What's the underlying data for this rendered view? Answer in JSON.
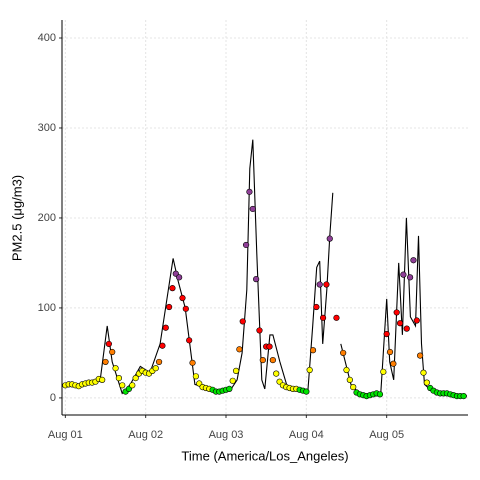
{
  "chart_data": {
    "type": "line_scatter",
    "x_label": "Time (America/Los_Angeles)",
    "y_label": "PM2.5 (μg/m3)",
    "xlim": [
      -1,
      120.3
    ],
    "xticks": [
      {
        "value": 0,
        "label": "Aug 01"
      },
      {
        "value": 24,
        "label": "Aug 02"
      },
      {
        "value": 48,
        "label": "Aug 03"
      },
      {
        "value": 72,
        "label": "Aug 04"
      },
      {
        "value": 96,
        "label": "Aug 05"
      }
    ],
    "ylim": [
      -19,
      420
    ],
    "yticks": [
      0,
      100,
      200,
      300,
      400
    ],
    "grid": true,
    "line": {
      "color": "#000000",
      "x": [
        10.4,
        12.5,
        14,
        17,
        19.4,
        22.4,
        25.3,
        28.3,
        32.2,
        33.7,
        35.8,
        38.7,
        43.2,
        49.2,
        51.3,
        52.8,
        54.2,
        55.1,
        56.0,
        57.2,
        58.7,
        59.6,
        61.1,
        62.0,
        64.1,
        66.5,
        70,
        72.4,
        73.9,
        75.1,
        76,
        76.9,
        78.1,
        79,
        79.9,
        80.5,
        82.3,
        85.3,
        88.3,
        94.2,
        96,
        96.9,
        98.1,
        99.6,
        100.7,
        101.9,
        103.1,
        104.6,
        105.5,
        106.4,
        107.3,
        108.8,
        111.8,
        120
      ],
      "values": [
        20,
        80,
        40,
        5,
        15,
        35,
        28,
        60,
        155,
        130,
        100,
        15,
        10,
        8,
        20,
        50,
        120,
        255,
        287,
        160,
        20,
        10,
        70,
        70,
        40,
        10,
        8,
        5,
        80,
        145,
        152,
        60,
        120,
        180,
        228,
        null,
        60,
        15,
        3,
        2,
        110,
        40,
        20,
        150,
        70,
        200,
        90,
        80,
        180,
        60,
        15,
        10,
        5,
        2
      ]
    },
    "points": {
      "x": [
        0,
        1,
        2,
        3,
        4,
        5,
        6,
        7,
        8,
        9,
        10,
        11,
        12,
        13,
        14,
        15,
        16,
        17,
        18,
        19,
        20,
        21,
        22,
        23,
        24,
        25,
        26,
        27,
        28,
        29,
        30,
        31,
        32,
        33,
        34,
        35,
        36,
        37,
        38,
        39,
        40,
        41,
        42,
        43,
        44,
        45,
        46,
        47,
        48,
        49,
        50,
        51,
        52,
        53,
        54,
        55,
        56,
        57,
        58,
        59,
        60,
        61,
        62,
        63,
        64,
        65,
        66,
        67,
        68,
        69,
        70,
        71,
        72,
        73,
        74,
        75,
        76,
        77,
        78,
        79,
        81,
        83,
        84,
        85,
        86,
        87,
        88,
        89,
        90,
        91,
        92,
        93,
        94,
        95,
        96,
        97,
        98,
        99,
        100,
        101,
        102,
        103,
        104,
        105,
        106,
        107,
        108,
        109,
        110,
        111,
        112,
        113,
        114,
        115,
        116,
        117,
        118,
        119
      ],
      "values": [
        14,
        15,
        15,
        14,
        13,
        15,
        16,
        17,
        17,
        18,
        21,
        20,
        40,
        60,
        51,
        33,
        22,
        14,
        7,
        10,
        14,
        22,
        27,
        30,
        28,
        27,
        30,
        33,
        40,
        58,
        78,
        101,
        122,
        138,
        134,
        111,
        99,
        64,
        39,
        24,
        16,
        12,
        11,
        10,
        9,
        7,
        7,
        8,
        9,
        10,
        19,
        30,
        54,
        85,
        170,
        229,
        210,
        132,
        75,
        42,
        57,
        57,
        42,
        27,
        18,
        14,
        12,
        11,
        10,
        10,
        9,
        8,
        7,
        31,
        53,
        101,
        126,
        89,
        126,
        177,
        89,
        50,
        31,
        20,
        12,
        6,
        4,
        3,
        2,
        3,
        4,
        5,
        4,
        29,
        71,
        51,
        38,
        95,
        83,
        137,
        77,
        134,
        153,
        86,
        47,
        28,
        17,
        11,
        8,
        6,
        5,
        5,
        5,
        4,
        3,
        2,
        2,
        2
      ],
      "colors": [
        "#ffff00",
        "#ffff00",
        "#ffff00",
        "#ffff00",
        "#ffff00",
        "#ffff00",
        "#ffff00",
        "#ffff00",
        "#ffff00",
        "#ffff00",
        "#ffff00",
        "#ffff00",
        "#ff7e00",
        "#ff0000",
        "#ff7e00",
        "#ffff00",
        "#ffff00",
        "#ffff00",
        "#00e400",
        "#00e400",
        "#ffff00",
        "#ffff00",
        "#ffff00",
        "#ffff00",
        "#ffff00",
        "#ffff00",
        "#ffff00",
        "#ffff00",
        "#ff7e00",
        "#ff0000",
        "#ff0000",
        "#ff0000",
        "#ff0000",
        "#8f3f97",
        "#8f3f97",
        "#ff0000",
        "#ff0000",
        "#ff0000",
        "#ff7e00",
        "#ffff00",
        "#ffff00",
        "#ffff00",
        "#ffff00",
        "#ffff00",
        "#00e400",
        "#00e400",
        "#00e400",
        "#00e400",
        "#00e400",
        "#00e400",
        "#ffff00",
        "#ffff00",
        "#ff7e00",
        "#ff0000",
        "#8f3f97",
        "#8f3f97",
        "#8f3f97",
        "#8f3f97",
        "#ff0000",
        "#ff7e00",
        "#ff0000",
        "#ff0000",
        "#ff7e00",
        "#ffff00",
        "#ffff00",
        "#ffff00",
        "#ffff00",
        "#ffff00",
        "#ffff00",
        "#ffff00",
        "#00e400",
        "#00e400",
        "#00e400",
        "#ffff00",
        "#ff7e00",
        "#ff0000",
        "#8f3f97",
        "#ff0000",
        "#ff0000",
        "#8f3f97",
        "#ff0000",
        "#ff7e00",
        "#ffff00",
        "#ffff00",
        "#ffff00",
        "#00e400",
        "#00e400",
        "#00e400",
        "#00e400",
        "#00e400",
        "#00e400",
        "#00e400",
        "#00e400",
        "#ffff00",
        "#ff0000",
        "#ff7e00",
        "#ff7e00",
        "#ff0000",
        "#ff0000",
        "#8f3f97",
        "#ff0000",
        "#8f3f97",
        "#8f3f97",
        "#ff0000",
        "#ff7e00",
        "#ffff00",
        "#ffff00",
        "#00e400",
        "#00e400",
        "#00e400",
        "#00e400",
        "#00e400",
        "#00e400",
        "#00e400",
        "#00e400",
        "#00e400",
        "#00e400",
        "#00e400"
      ]
    }
  }
}
